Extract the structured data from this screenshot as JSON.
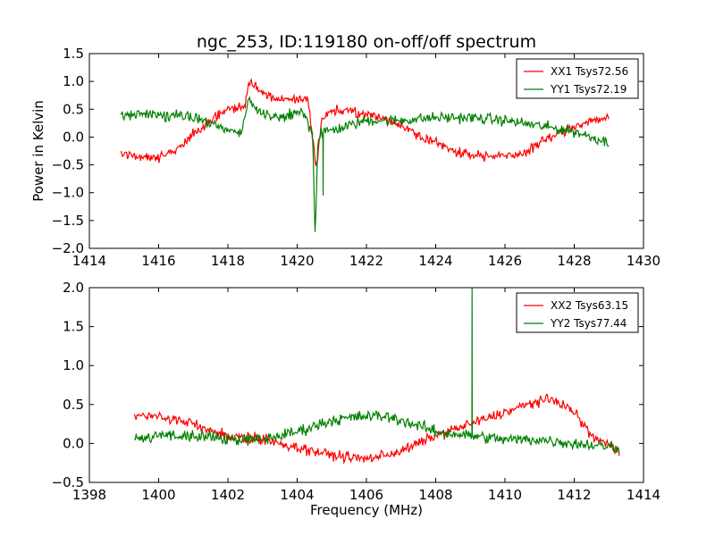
{
  "figure": {
    "title": "ngc_253, ID:119180 on-off/off spectrum"
  },
  "chart_data": [
    {
      "type": "line",
      "title": "ngc_253, ID:119180 on-off/off spectrum",
      "xlabel": "",
      "ylabel": "Power in Kelvin",
      "xlim": [
        1414,
        1430
      ],
      "ylim": [
        -2.0,
        1.5
      ],
      "xticks": [
        1414,
        1416,
        1418,
        1420,
        1422,
        1424,
        1426,
        1428,
        1430
      ],
      "xtick_labels": [
        "1414",
        "1416",
        "1418",
        "1420",
        "1422",
        "1424",
        "1426",
        "1428",
        "1430"
      ],
      "yticks": [
        -2.0,
        -1.5,
        -1.0,
        -0.5,
        0.0,
        0.5,
        1.0,
        1.5
      ],
      "ytick_labels": [
        "−2.0",
        "−1.5",
        "−1.0",
        "−0.5",
        "0.0",
        "0.5",
        "1.0",
        "1.5"
      ],
      "grid": false,
      "legend_position": "top-right",
      "legend_font_size": "small",
      "series": [
        {
          "name": "XX1 Tsys72.56",
          "color": "#ff0000",
          "noise": 0.08,
          "x_range": [
            1414.9,
            1429.0
          ],
          "x": [
            1414.9,
            1415.5,
            1416.0,
            1416.5,
            1417.0,
            1417.5,
            1418.0,
            1418.5,
            1418.6,
            1418.9,
            1419.3,
            1419.8,
            1420.3,
            1420.45,
            1420.55,
            1420.7,
            1421.0,
            1421.5,
            1422.0,
            1422.5,
            1423.0,
            1423.5,
            1424.0,
            1424.5,
            1425.0,
            1425.5,
            1426.0,
            1426.5,
            1427.0,
            1427.5,
            1428.0,
            1428.5,
            1429.0
          ],
          "values": [
            -0.3,
            -0.35,
            -0.35,
            -0.25,
            0.05,
            0.3,
            0.5,
            0.55,
            1.0,
            0.85,
            0.7,
            0.65,
            0.7,
            0.0,
            -0.6,
            0.3,
            0.5,
            0.45,
            0.4,
            0.35,
            0.2,
            0.05,
            -0.1,
            -0.25,
            -0.3,
            -0.35,
            -0.35,
            -0.3,
            -0.1,
            0.05,
            0.2,
            0.3,
            0.35
          ]
        },
        {
          "name": "YY1 Tsys72.19",
          "color": "#008000",
          "noise": 0.09,
          "x_range": [
            1414.9,
            1429.0
          ],
          "x": [
            1414.9,
            1415.5,
            1416.0,
            1417.0,
            1417.5,
            1418.0,
            1418.4,
            1418.6,
            1418.9,
            1419.5,
            1420.2,
            1420.45,
            1420.52,
            1420.6,
            1420.8,
            1421.2,
            1422.0,
            1423.0,
            1424.0,
            1425.0,
            1426.0,
            1427.0,
            1427.5,
            1428.0,
            1428.5,
            1429.0
          ],
          "values": [
            0.4,
            0.4,
            0.4,
            0.35,
            0.25,
            0.1,
            0.1,
            0.7,
            0.45,
            0.35,
            0.45,
            0.0,
            -1.85,
            0.0,
            0.1,
            0.15,
            0.3,
            0.3,
            0.35,
            0.35,
            0.3,
            0.2,
            0.15,
            0.1,
            0.0,
            -0.1
          ],
          "extra_spikes": [
            {
              "x": 1420.75,
              "value": -1.05
            }
          ]
        }
      ]
    },
    {
      "type": "line",
      "title": "",
      "xlabel": "Frequency (MHz)",
      "ylabel": "",
      "xlim": [
        1398,
        1414
      ],
      "ylim": [
        -0.5,
        2.0
      ],
      "xticks": [
        1398,
        1400,
        1402,
        1404,
        1406,
        1408,
        1410,
        1412,
        1414
      ],
      "xtick_labels": [
        "1398",
        "1400",
        "1402",
        "1404",
        "1406",
        "1408",
        "1410",
        "1412",
        "1414"
      ],
      "yticks": [
        -0.5,
        0.0,
        0.5,
        1.0,
        1.5,
        2.0
      ],
      "ytick_labels": [
        "−0.5",
        "0.0",
        "0.5",
        "1.0",
        "1.5",
        "2.0"
      ],
      "grid": false,
      "legend_position": "top-right",
      "series": [
        {
          "name": "XX2 Tsys63.15",
          "color": "#ff0000",
          "noise": 0.06,
          "x_range": [
            1399.3,
            1413.3
          ],
          "x": [
            1399.3,
            1400.0,
            1401.0,
            1402.0,
            1403.0,
            1404.0,
            1405.0,
            1406.0,
            1407.0,
            1408.0,
            1409.0,
            1410.0,
            1411.0,
            1411.5,
            1412.0,
            1412.5,
            1413.3
          ],
          "values": [
            0.35,
            0.35,
            0.25,
            0.1,
            0.05,
            -0.05,
            -0.15,
            -0.2,
            -0.1,
            0.1,
            0.25,
            0.4,
            0.55,
            0.55,
            0.4,
            0.1,
            -0.1
          ]
        },
        {
          "name": "YY2 Tsys77.44",
          "color": "#008000",
          "noise": 0.07,
          "x_range": [
            1399.3,
            1413.3
          ],
          "x": [
            1399.3,
            1400.0,
            1401.0,
            1402.0,
            1403.0,
            1404.0,
            1405.0,
            1406.0,
            1406.5,
            1407.0,
            1408.0,
            1409.0,
            1410.0,
            1411.0,
            1412.0,
            1413.3
          ],
          "values": [
            0.05,
            0.1,
            0.1,
            0.05,
            0.05,
            0.15,
            0.3,
            0.35,
            0.35,
            0.3,
            0.15,
            0.1,
            0.05,
            0.05,
            0.0,
            -0.05
          ],
          "extra_spikes": [
            {
              "x": 1409.05,
              "value": 2.0
            }
          ]
        }
      ]
    }
  ]
}
